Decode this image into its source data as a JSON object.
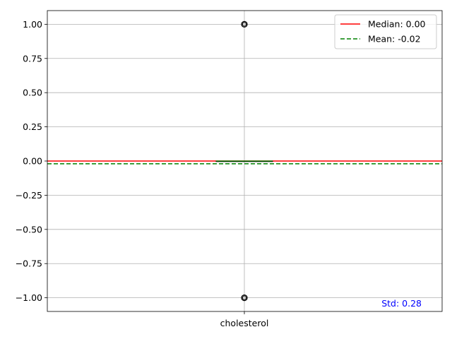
{
  "chart_data": {
    "type": "box",
    "categories": [
      "cholesterol"
    ],
    "ylim": [
      -1.1,
      1.1
    ],
    "yticks": [
      1.0,
      0.75,
      0.5,
      0.25,
      0.0,
      -0.25,
      -0.5,
      -0.75,
      -1.0
    ],
    "ytick_labels": [
      "1.00",
      "0.75",
      "0.50",
      "0.25",
      "0.00",
      "−0.25",
      "−0.50",
      "−0.75",
      "−1.00"
    ],
    "grid": true,
    "box": {
      "q1": 0.0,
      "median": 0.0,
      "q3": 0.0,
      "whisker_low": 0.0,
      "whisker_high": 0.0,
      "outliers": [
        1.0,
        -1.0
      ]
    },
    "reference_lines": [
      {
        "name": "Median: 0.00",
        "value": 0.0,
        "color": "#ff0000",
        "style": "solid"
      },
      {
        "name": "Mean: -0.02",
        "value": -0.02,
        "color": "#008000",
        "style": "dashed"
      }
    ],
    "legend_position": "top-right",
    "annotation": {
      "text": "Std: 0.28",
      "color": "#0000ff"
    }
  }
}
